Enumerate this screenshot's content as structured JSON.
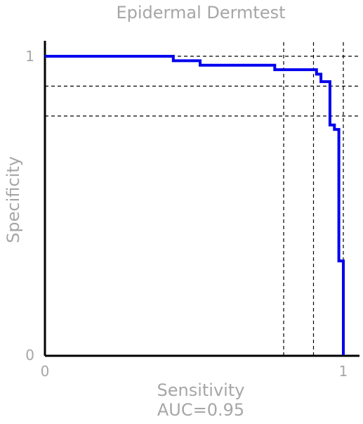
{
  "chart_data": {
    "type": "line",
    "title": "Epidermal Dermtest",
    "xlabel": "Sensitivity",
    "ylabel": "Specificity",
    "annotation": "AUC=0.95",
    "xlim": [
      0,
      1
    ],
    "ylim": [
      0,
      1
    ],
    "x_ticks": [
      {
        "value": 0,
        "label": "0"
      },
      {
        "value": 1,
        "label": "1"
      }
    ],
    "y_ticks": [
      {
        "value": 0,
        "label": "0"
      },
      {
        "value": 1,
        "label": "1"
      }
    ],
    "grid": false,
    "legend": "none",
    "series": [
      {
        "color": "#0000ee",
        "x": [
          0.0,
          0.43,
          0.43,
          0.52,
          0.52,
          0.77,
          0.77,
          0.91,
          0.91,
          0.925,
          0.925,
          0.955,
          0.955,
          0.97,
          0.97,
          0.985,
          0.985,
          1.0,
          1.0
        ],
        "y": [
          1.0,
          1.0,
          0.985,
          0.985,
          0.97,
          0.97,
          0.955,
          0.955,
          0.94,
          0.94,
          0.915,
          0.915,
          0.77,
          0.77,
          0.755,
          0.755,
          0.315,
          0.315,
          0.0
        ]
      }
    ],
    "reference_lines": {
      "color": "#000000",
      "style": "dashed",
      "vertical": [
        0.8,
        0.9,
        1.0
      ],
      "horizontal": [
        0.8,
        0.9,
        1.0
      ]
    }
  }
}
